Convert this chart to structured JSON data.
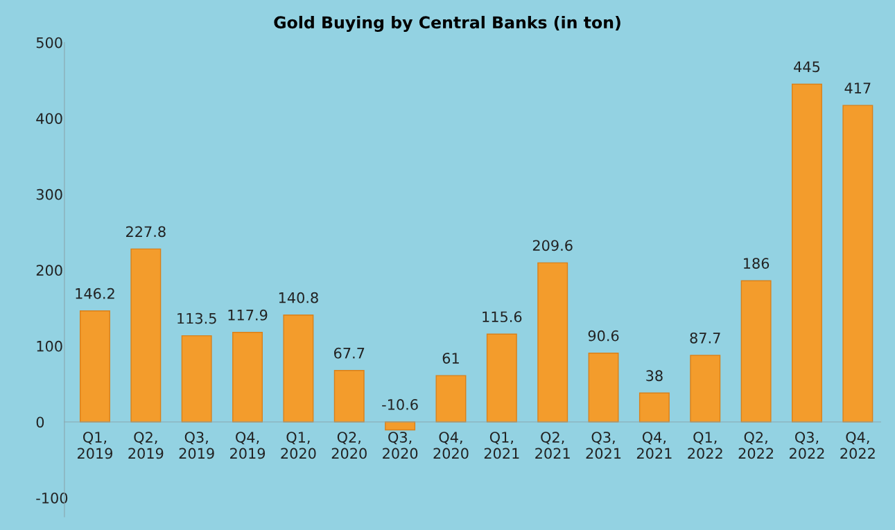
{
  "chart_data": {
    "type": "bar",
    "title": "Gold Buying by Central Banks (in ton)",
    "categories": [
      "Q1,\n2019",
      "Q2,\n2019",
      "Q3,\n2019",
      "Q4,\n2019",
      "Q1,\n2020",
      "Q2,\n2020",
      "Q3,\n2020",
      "Q4,\n2020",
      "Q1,\n2021",
      "Q2,\n2021",
      "Q3,\n2021",
      "Q4,\n2021",
      "Q1,\n2022",
      "Q2,\n2022",
      "Q3,\n2022",
      "Q4,\n2022"
    ],
    "values": [
      146.2,
      227.8,
      113.5,
      117.9,
      140.8,
      67.7,
      -10.6,
      61,
      115.6,
      209.6,
      90.6,
      38,
      87.7,
      186,
      445,
      417
    ],
    "color": "#f39c2c",
    "ylim": [
      -125,
      500
    ],
    "yticks": [
      -100,
      0,
      100,
      200,
      300,
      400,
      500
    ],
    "grid": false,
    "data_labels": true
  }
}
